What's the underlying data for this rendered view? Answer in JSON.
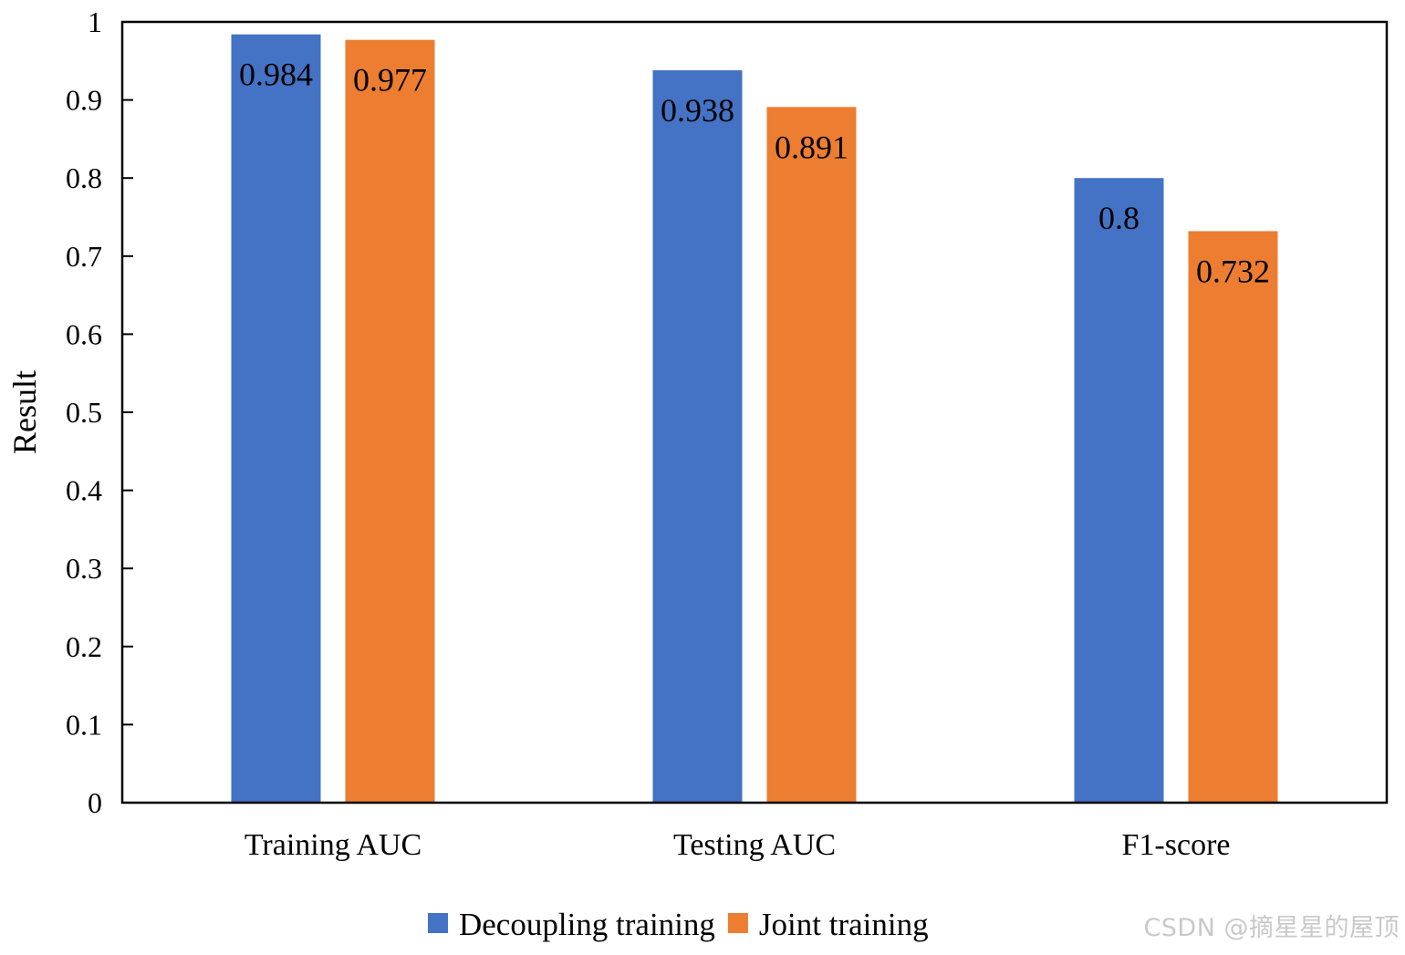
{
  "chart_data": {
    "type": "bar",
    "title": "",
    "xlabel": "",
    "ylabel": "Result",
    "ylim": [
      0,
      1
    ],
    "yticks": [
      "0",
      "0.1",
      "0.2",
      "0.3",
      "0.4",
      "0.5",
      "0.6",
      "0.7",
      "0.8",
      "0.9",
      "1"
    ],
    "grid": false,
    "legend_position": "bottom-center",
    "categories": [
      "Training AUC",
      "Testing AUC",
      "F1-score"
    ],
    "series": [
      {
        "name": "Decoupling training",
        "color": "#4472C4",
        "values": [
          0.984,
          0.938,
          0.8
        ],
        "labels": [
          "0.984",
          "0.938",
          "0.8"
        ]
      },
      {
        "name": "Joint training",
        "color": "#ED7D31",
        "values": [
          0.977,
          0.891,
          0.732
        ],
        "labels": [
          "0.977",
          "0.891",
          "0.732"
        ]
      }
    ]
  },
  "watermark": "CSDN @摘星星的屋顶"
}
